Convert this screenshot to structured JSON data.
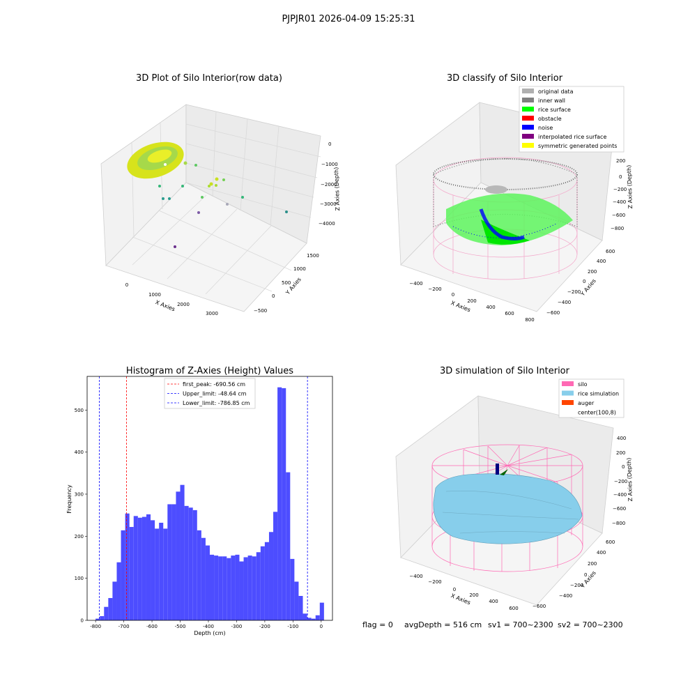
{
  "figure": {
    "suptitle": "PJPJR01 2026-04-09 15:25:31",
    "footer": {
      "flag": "flag = 0",
      "avg_depth": "avgDepth = 516 cm",
      "sv1": "sv1 = 700~2300",
      "sv2": "sv2 = 700~2300"
    }
  },
  "panels": {
    "raw": {
      "title": "3D Plot of Silo Interior(row data)",
      "xlabel": "X Axies",
      "ylabel": "Y Axies",
      "zlabel": "Z Axies (Depth)",
      "xticks": [
        "0",
        "1000",
        "2000",
        "3000"
      ],
      "yticks": [
        "−500",
        "0",
        "500",
        "1000",
        "1500"
      ],
      "zticks": [
        "0",
        "−1000",
        "−2000",
        "−3000",
        "−4000"
      ]
    },
    "classify": {
      "title": "3D classify of Silo Interior",
      "xlabel": "X Axies",
      "ylabel": "Y Axies",
      "zlabel": "Z Axies (Depth)",
      "xticks": [
        "−400",
        "−200",
        "0",
        "200",
        "400",
        "600",
        "800"
      ],
      "yticks": [
        "−600",
        "−400",
        "−200",
        "0",
        "200",
        "400",
        "600"
      ],
      "zticks": [
        "200",
        "0",
        "−200",
        "−400",
        "−600",
        "−800"
      ],
      "legend": [
        {
          "label": "original data",
          "color": "#b0b0b0"
        },
        {
          "label": "inner wall",
          "color": "#808080"
        },
        {
          "label": "rice surface",
          "color": "#00ff00"
        },
        {
          "label": "obstacle",
          "color": "#ff0000"
        },
        {
          "label": "noise",
          "color": "#0000ff"
        },
        {
          "label": "interpolated rice surface",
          "color": "#800080"
        },
        {
          "label": "symmetric generated points",
          "color": "#ffff00"
        }
      ]
    },
    "simulation": {
      "title": "3D simulation of Silo Interior",
      "xlabel": "X Axies",
      "ylabel": "Y Axies",
      "zlabel": "Z Axies (Depth)",
      "xticks": [
        "−400",
        "−200",
        "0",
        "200",
        "400",
        "600"
      ],
      "yticks": [
        "−600",
        "−400",
        "−200",
        "0",
        "200",
        "400",
        "600"
      ],
      "zticks": [
        "400",
        "200",
        "0",
        "−200",
        "−400",
        "−600",
        "−800"
      ],
      "legend": [
        {
          "label": "silo",
          "color": "#ff69b4"
        },
        {
          "label": "rice simulation",
          "color": "#87ceeb"
        },
        {
          "label": "auger",
          "color": "#ff4500"
        },
        {
          "label": "center(100,8)",
          "color": "#ffffff"
        }
      ]
    }
  },
  "chart_data": [
    {
      "type": "scatter",
      "title": "3D Plot of Silo Interior(row data)",
      "xlabel": "X Axies",
      "ylabel": "Y Axies",
      "zlabel": "Z Axies (Depth)",
      "xlim": [
        -500,
        3600
      ],
      "ylim": [
        -600,
        1700
      ],
      "zlim": [
        -4300,
        200
      ]
    },
    {
      "type": "scatter",
      "title": "3D classify of Silo Interior",
      "xlabel": "X Axies",
      "ylabel": "Y Axies",
      "zlabel": "Z Axies (Depth)",
      "xlim": [
        -500,
        800
      ],
      "ylim": [
        -650,
        650
      ],
      "zlim": [
        -900,
        300
      ],
      "series": [
        {
          "name": "original data"
        },
        {
          "name": "inner wall"
        },
        {
          "name": "rice surface"
        },
        {
          "name": "obstacle"
        },
        {
          "name": "noise"
        },
        {
          "name": "interpolated rice surface"
        },
        {
          "name": "symmetric generated points"
        }
      ],
      "legend_position": "top-right"
    },
    {
      "type": "bar",
      "title": "Histogram of Z-Axies (Height) Values",
      "xlabel": "Depth (cm)",
      "ylabel": "Frequency",
      "xlim": [
        -830,
        40
      ],
      "ylim": [
        0,
        580
      ],
      "xticks": [
        -800,
        -700,
        -600,
        -500,
        -400,
        -300,
        -200,
        -100,
        0
      ],
      "yticks": [
        0,
        100,
        200,
        300,
        400,
        500
      ],
      "bin_width": 15,
      "bin_left_edges": [
        -800,
        -785,
        -770,
        -755,
        -740,
        -725,
        -710,
        -695,
        -680,
        -665,
        -650,
        -635,
        -620,
        -605,
        -590,
        -575,
        -560,
        -545,
        -530,
        -515,
        -500,
        -485,
        -470,
        -455,
        -440,
        -425,
        -410,
        -395,
        -380,
        -365,
        -350,
        -335,
        -320,
        -305,
        -290,
        -275,
        -260,
        -245,
        -230,
        -215,
        -200,
        -185,
        -170,
        -155,
        -140,
        -125,
        -110,
        -95,
        -80,
        -65,
        -50,
        -35,
        -20,
        -5
      ],
      "counts": [
        4,
        10,
        32,
        53,
        92,
        138,
        214,
        254,
        222,
        248,
        244,
        246,
        252,
        238,
        218,
        232,
        218,
        276,
        276,
        306,
        322,
        272,
        268,
        262,
        214,
        196,
        178,
        156,
        154,
        152,
        152,
        148,
        154,
        156,
        140,
        150,
        154,
        152,
        162,
        176,
        186,
        210,
        258,
        554,
        552,
        352,
        146,
        92,
        58,
        16,
        6,
        4,
        12,
        42
      ],
      "lines": [
        {
          "label": "first_peak: -690.56 cm",
          "x": -690.56,
          "color": "#ff0000"
        },
        {
          "label": "Upper_limit: -48.64 cm",
          "x": -48.64,
          "color": "#0000ff"
        },
        {
          "label": "Lower_limit: -786.85 cm",
          "x": -786.85,
          "color": "#0000ff"
        }
      ],
      "bar_color": "#4d4dff",
      "legend_position": "top-center"
    },
    {
      "type": "area",
      "title": "3D simulation of Silo Interior",
      "xlabel": "X Axies",
      "ylabel": "Y Axies",
      "zlabel": "Z Axies (Depth)",
      "xlim": [
        -500,
        700
      ],
      "ylim": [
        -650,
        650
      ],
      "zlim": [
        -900,
        450
      ],
      "series": [
        {
          "name": "silo"
        },
        {
          "name": "rice simulation"
        },
        {
          "name": "auger"
        },
        {
          "name": "center(100,8)"
        }
      ],
      "legend_position": "top-right"
    }
  ]
}
